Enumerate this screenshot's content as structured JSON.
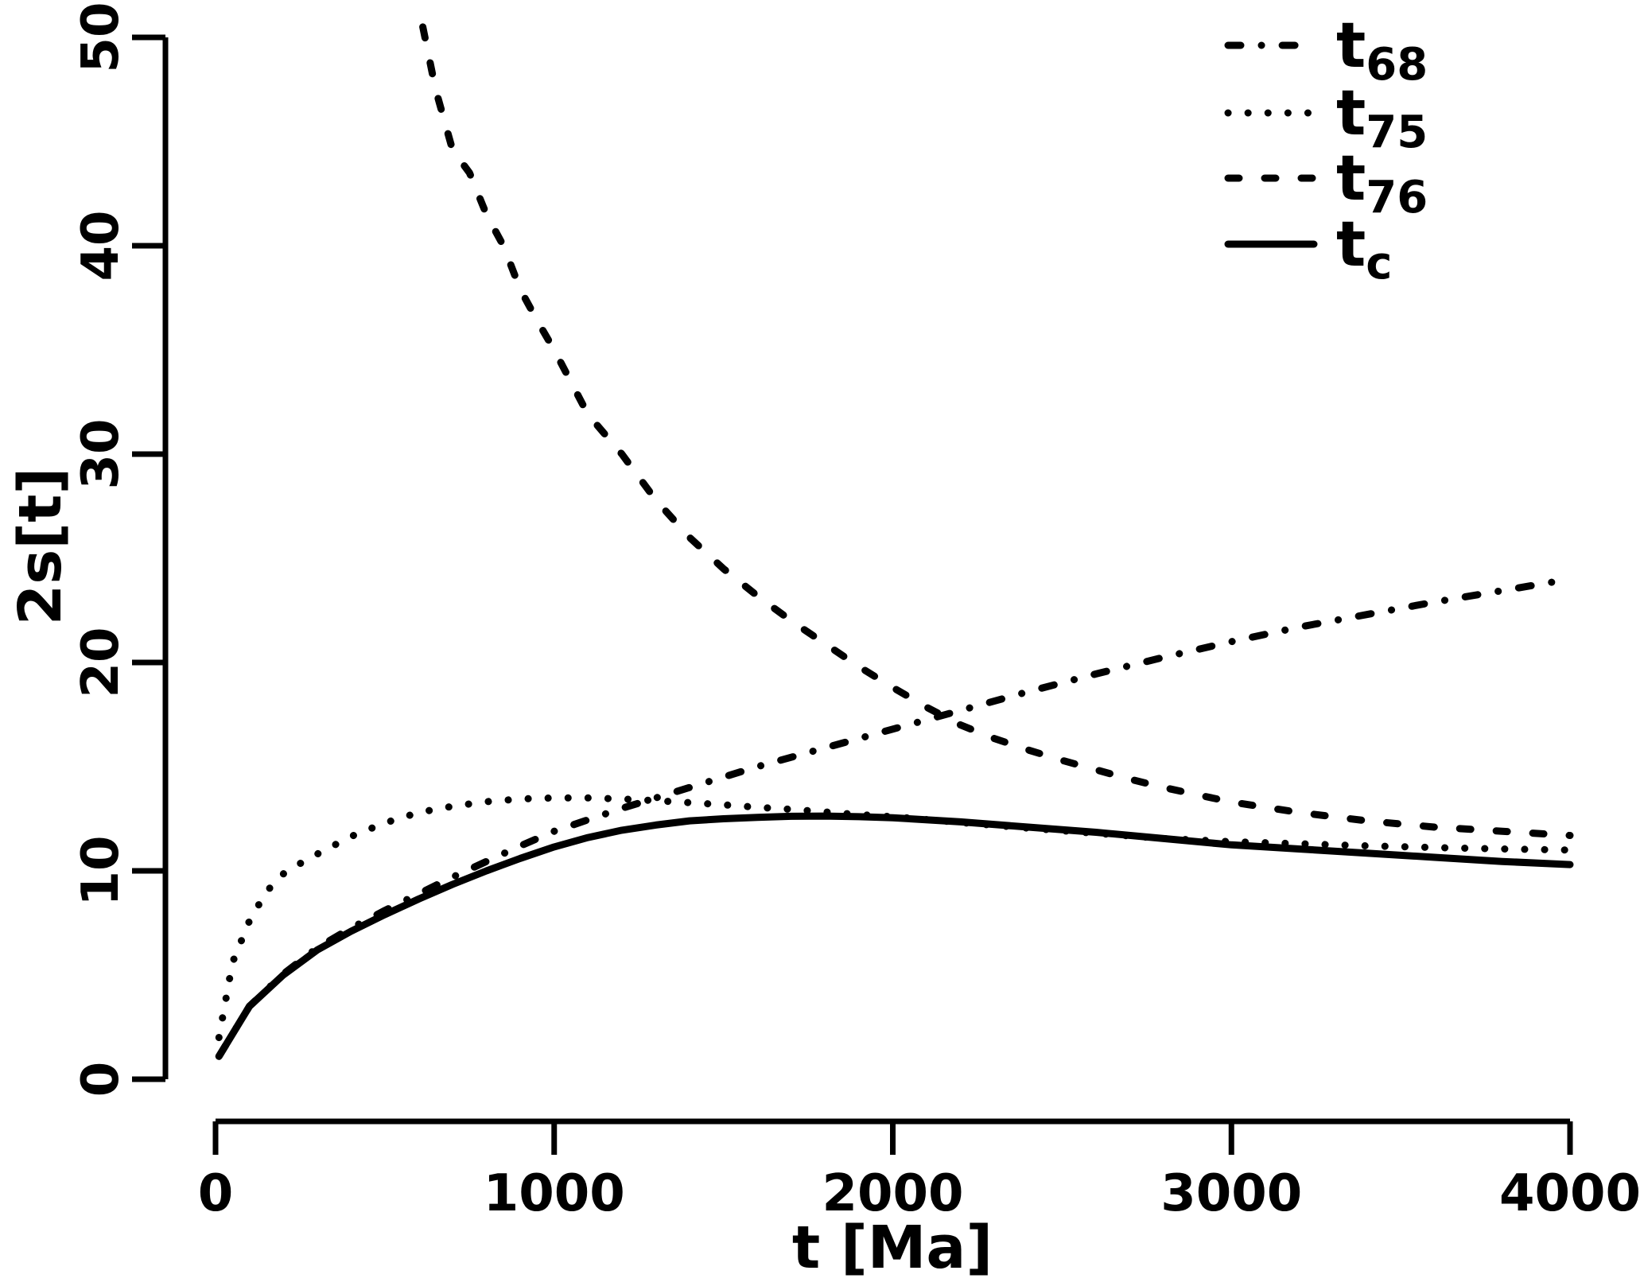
{
  "figure": {
    "background": "#ffffff",
    "ink": "#000000"
  },
  "chart_data": {
    "type": "line",
    "title": "",
    "xlabel": "t [Ma]",
    "ylabel": "2s[t]",
    "xlim": [
      0,
      4000
    ],
    "ylim": [
      0,
      50
    ],
    "xticks": [
      0,
      1000,
      2000,
      3000,
      4000
    ],
    "yticks": [
      0,
      10,
      20,
      30,
      40,
      50
    ],
    "grid": false,
    "legend_position": "top-right",
    "series": [
      {
        "name": "t68",
        "label_main": "t",
        "label_sub": "68",
        "line_style": "dashdot",
        "x": [
          10,
          100,
          200,
          300,
          400,
          500,
          600,
          700,
          800,
          900,
          1000,
          1100,
          1200,
          1300,
          1400,
          1500,
          1600,
          1700,
          1800,
          1900,
          2000,
          2200,
          2400,
          2600,
          2800,
          3000,
          3200,
          3400,
          3600,
          3800,
          4000
        ],
        "y": [
          1.1,
          3.5,
          5.05,
          6.3,
          7.25,
          8.1,
          8.9,
          9.7,
          10.45,
          11.2,
          11.9,
          12.45,
          13.0,
          13.5,
          14.0,
          14.5,
          15.0,
          15.45,
          15.9,
          16.35,
          16.8,
          17.7,
          18.6,
          19.45,
          20.25,
          21.0,
          21.7,
          22.3,
          22.9,
          23.45,
          24.0
        ]
      },
      {
        "name": "t75",
        "label_main": "t",
        "label_sub": "75",
        "line_style": "dotted",
        "x": [
          10,
          50,
          100,
          150,
          200,
          250,
          300,
          400,
          500,
          600,
          700,
          800,
          900,
          1000,
          1100,
          1200,
          1300,
          1400,
          1500,
          1600,
          1700,
          1800,
          1900,
          2000,
          2200,
          2400,
          2600,
          2800,
          3000,
          3200,
          3400,
          3600,
          3800,
          4000
        ],
        "y": [
          2.0,
          5.6,
          7.6,
          9.0,
          9.85,
          10.35,
          10.8,
          11.65,
          12.3,
          12.8,
          13.1,
          13.32,
          13.45,
          13.5,
          13.5,
          13.45,
          13.37,
          13.27,
          13.17,
          13.05,
          12.95,
          12.83,
          12.7,
          12.6,
          12.32,
          12.05,
          11.8,
          11.55,
          11.4,
          11.3,
          11.2,
          11.12,
          11.05,
          11.0
        ]
      },
      {
        "name": "t76",
        "label_main": "t",
        "label_sub": "76",
        "line_style": "dashed",
        "x": [
          612,
          650,
          700,
          750,
          800,
          850,
          900,
          950,
          1000,
          1100,
          1200,
          1300,
          1400,
          1500,
          1600,
          1700,
          1800,
          1900,
          2000,
          2100,
          2200,
          2300,
          2400,
          2500,
          2600,
          2700,
          2800,
          2900,
          3000,
          3200,
          3400,
          3600,
          3800,
          4000
        ],
        "y": [
          50.5,
          47.5,
          44.6,
          43.5,
          41.5,
          40.0,
          37.9,
          36.4,
          35.0,
          31.9,
          30.0,
          27.8,
          26.0,
          24.5,
          23.2,
          22.0,
          20.9,
          19.8,
          18.8,
          17.85,
          17.0,
          16.35,
          15.8,
          15.3,
          14.85,
          14.4,
          14.0,
          13.65,
          13.3,
          12.8,
          12.4,
          12.1,
          11.9,
          11.7
        ]
      },
      {
        "name": "tc",
        "label_main": "t",
        "label_sub": "c",
        "line_style": "solid",
        "x": [
          10,
          100,
          200,
          300,
          400,
          500,
          600,
          700,
          800,
          900,
          1000,
          1100,
          1200,
          1300,
          1400,
          1500,
          1600,
          1700,
          1800,
          1900,
          2000,
          2200,
          2400,
          2600,
          2800,
          3000,
          3200,
          3400,
          3600,
          3800,
          4000
        ],
        "y": [
          1.1,
          3.5,
          5.0,
          6.2,
          7.1,
          7.9,
          8.65,
          9.35,
          10.0,
          10.6,
          11.15,
          11.6,
          11.95,
          12.2,
          12.4,
          12.5,
          12.57,
          12.62,
          12.63,
          12.6,
          12.55,
          12.35,
          12.1,
          11.85,
          11.55,
          11.25,
          11.05,
          10.85,
          10.65,
          10.45,
          10.3
        ]
      }
    ]
  }
}
